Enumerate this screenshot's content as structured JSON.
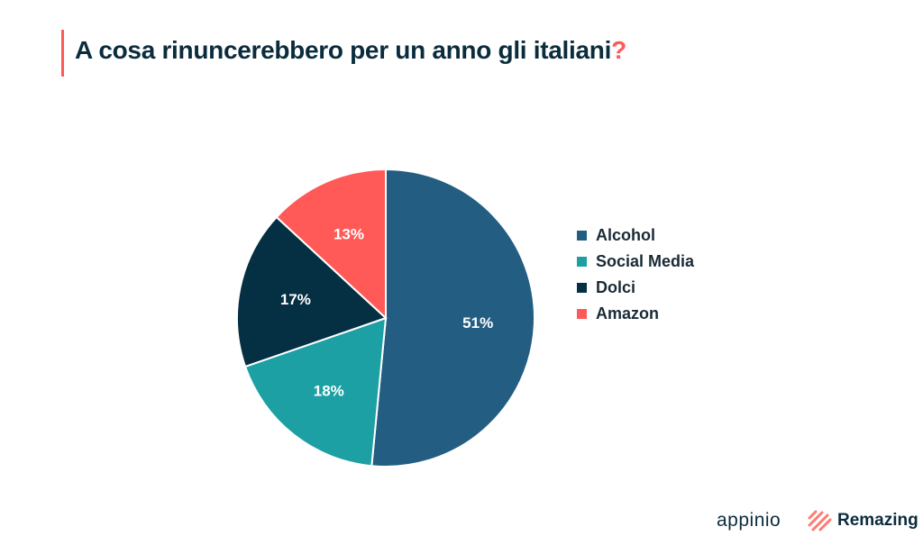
{
  "header": {
    "title": "A cosa rinuncerebbero per un anno gli italiani",
    "title_mark": "?"
  },
  "chart_data": {
    "type": "pie",
    "title": "A cosa rinuncerebbero per un anno gli italiani?",
    "start": "top",
    "direction": "clockwise",
    "legend_position": "right",
    "slices": [
      {
        "label": "Alcohol",
        "value": 51,
        "display": "51%",
        "color": "#235d82"
      },
      {
        "label": "Social Media",
        "value": 18,
        "display": "18%",
        "color": "#1ca0a4"
      },
      {
        "label": "Dolci",
        "value": 17,
        "display": "17%",
        "color": "#052f42"
      },
      {
        "label": "Amazon",
        "value": 13,
        "display": "13%",
        "color": "#ff5a57"
      }
    ]
  },
  "footer": {
    "brand1": "appinio",
    "brand2": "Remazing"
  },
  "colors": {
    "accent": "#ff5a57",
    "text": "#0b2c3d"
  }
}
